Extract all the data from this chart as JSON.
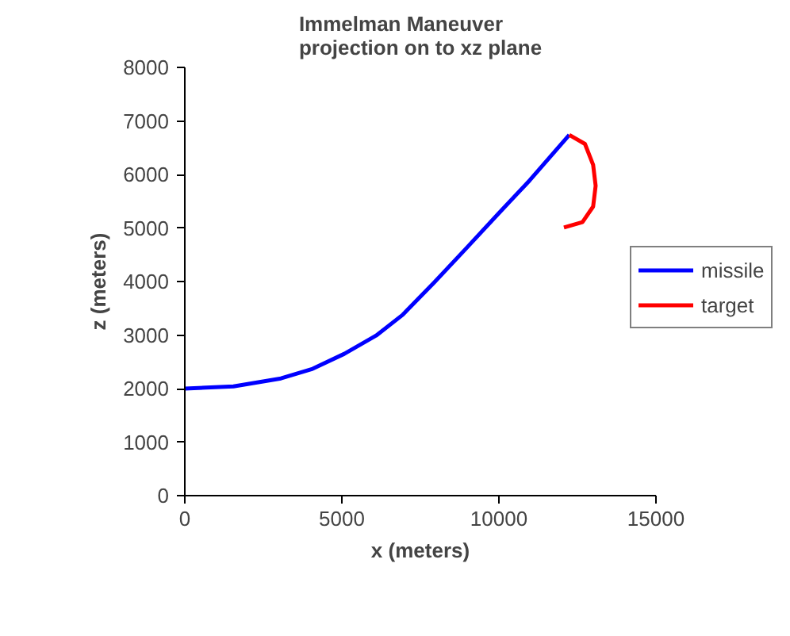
{
  "chart_data": {
    "type": "line",
    "title": "Immelman Maneuver\nprojection on to xz plane",
    "xlabel": "x (meters)",
    "ylabel": "z (meters)",
    "xlim": [
      0,
      15000
    ],
    "xticks": [
      0,
      5000,
      10000,
      15000
    ],
    "ylim": [
      0,
      8000
    ],
    "yticks": [
      0,
      1000,
      2000,
      3000,
      4000,
      5000,
      6000,
      7000,
      8000
    ],
    "legend": "right",
    "grid": false,
    "marker": "none",
    "line_style": "solid",
    "series": [
      {
        "name": "missile",
        "color": "#0000ff",
        "x": [
          0,
          1550,
          3060,
          4070,
          5080,
          6090,
          6940,
          7950,
          8960,
          9970,
          10980,
          12240
        ],
        "values": [
          2000,
          2040,
          2190,
          2370,
          2650,
          2990,
          3380,
          3990,
          4620,
          5260,
          5890,
          6740
        ]
      },
      {
        "name": "target",
        "color": "#ff0000",
        "x": [
          12240,
          12740,
          13000,
          13080,
          13000,
          12660,
          12070
        ],
        "values": [
          6740,
          6570,
          6180,
          5790,
          5400,
          5110,
          5010
        ]
      }
    ]
  }
}
